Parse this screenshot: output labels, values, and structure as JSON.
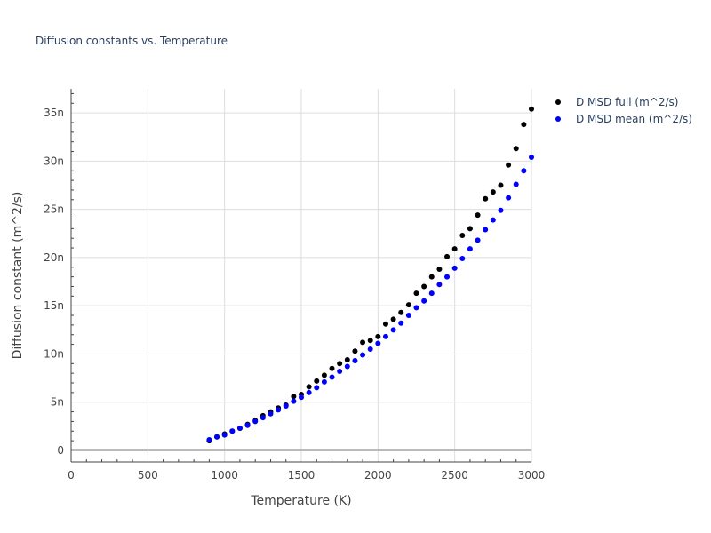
{
  "chart_data": {
    "type": "scatter",
    "title": "Diffusion constants vs. Temperature",
    "xlabel": "Temperature (K)",
    "ylabel": "Diffusion constant (m^2/s)",
    "xlim": [
      0,
      3000
    ],
    "ylim": [
      -1.2e-09,
      3.75e-08
    ],
    "xticks": [
      0,
      500,
      1000,
      1500,
      2000,
      2500,
      3000
    ],
    "xtick_labels": [
      "0",
      "500",
      "1000",
      "1500",
      "2000",
      "2500",
      "3000"
    ],
    "yticks": [
      0,
      5e-09,
      1e-08,
      1.5e-08,
      2e-08,
      2.5e-08,
      3e-08,
      3.5e-08
    ],
    "ytick_labels": [
      "0",
      "5n",
      "10n",
      "15n",
      "20n",
      "25n",
      "30n",
      "35n"
    ],
    "grid": true,
    "legend_position": "top-right outside",
    "series": [
      {
        "name": "D MSD full (m^2/s)",
        "color": "#000000",
        "x": [
          900,
          950,
          1000,
          1050,
          1100,
          1150,
          1200,
          1250,
          1300,
          1350,
          1400,
          1450,
          1500,
          1550,
          1600,
          1650,
          1700,
          1750,
          1800,
          1850,
          1900,
          1950,
          2000,
          2050,
          2100,
          2150,
          2200,
          2250,
          2300,
          2350,
          2400,
          2450,
          2500,
          2550,
          2600,
          2650,
          2700,
          2750,
          2800,
          2850,
          2900,
          2950,
          3000
        ],
        "y": [
          1e-09,
          1.4e-09,
          1.7e-09,
          2e-09,
          2.3e-09,
          2.7e-09,
          3.1e-09,
          3.6e-09,
          4e-09,
          4.4e-09,
          4.7e-09,
          5.6e-09,
          5.8e-09,
          6.6e-09,
          7.2e-09,
          7.8e-09,
          8.5e-09,
          9e-09,
          9.4e-09,
          1.03e-08,
          1.12e-08,
          1.14e-08,
          1.18e-08,
          1.31e-08,
          1.36e-08,
          1.43e-08,
          1.51e-08,
          1.63e-08,
          1.7e-08,
          1.8e-08,
          1.88e-08,
          2.01e-08,
          2.09e-08,
          2.23e-08,
          2.3e-08,
          2.44e-08,
          2.61e-08,
          2.68e-08,
          2.75e-08,
          2.96e-08,
          3.13e-08,
          3.38e-08,
          3.54e-08
        ]
      },
      {
        "name": "D MSD mean (m^2/s)",
        "color": "#0000ff",
        "x": [
          900,
          950,
          1000,
          1050,
          1100,
          1150,
          1200,
          1250,
          1300,
          1350,
          1400,
          1450,
          1500,
          1550,
          1600,
          1650,
          1700,
          1750,
          1800,
          1850,
          1900,
          1950,
          2000,
          2050,
          2100,
          2150,
          2200,
          2250,
          2300,
          2350,
          2400,
          2450,
          2500,
          2550,
          2600,
          2650,
          2700,
          2750,
          2800,
          2850,
          2900,
          2950,
          3000
        ],
        "y": [
          1.1e-09,
          1.4e-09,
          1.6e-09,
          2e-09,
          2.3e-09,
          2.6e-09,
          3e-09,
          3.4e-09,
          3.8e-09,
          4.2e-09,
          4.6e-09,
          5.1e-09,
          5.5e-09,
          6e-09,
          6.5e-09,
          7.1e-09,
          7.6e-09,
          8.2e-09,
          8.7e-09,
          9.3e-09,
          9.9e-09,
          1.05e-08,
          1.11e-08,
          1.18e-08,
          1.25e-08,
          1.32e-08,
          1.4e-08,
          1.48e-08,
          1.55e-08,
          1.63e-08,
          1.72e-08,
          1.8e-08,
          1.89e-08,
          1.99e-08,
          2.09e-08,
          2.18e-08,
          2.29e-08,
          2.39e-08,
          2.49e-08,
          2.62e-08,
          2.76e-08,
          2.9e-08,
          3.04e-08
        ]
      }
    ]
  }
}
